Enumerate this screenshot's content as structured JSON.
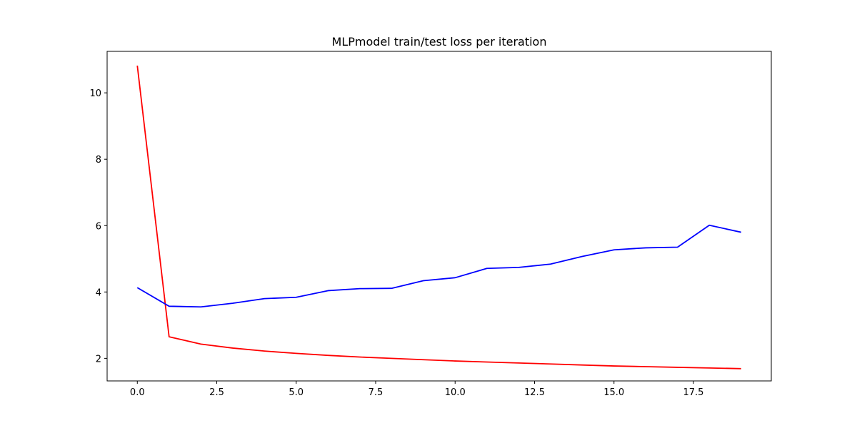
{
  "chart_data": {
    "type": "line",
    "title": "MLPmodel train/test loss per iteration",
    "xlabel": "",
    "ylabel": "",
    "xlim": [
      -0.95,
      19.95
    ],
    "ylim": [
      1.32,
      11.25
    ],
    "xticks": [
      0,
      2.5,
      5,
      7.5,
      10,
      12.5,
      15,
      17.5
    ],
    "xtick_labels": [
      "0.0",
      "2.5",
      "5.0",
      "7.5",
      "10.0",
      "12.5",
      "15.0",
      "17.5"
    ],
    "yticks": [
      2,
      4,
      6,
      8,
      10
    ],
    "ytick_labels": [
      "2",
      "4",
      "6",
      "8",
      "10"
    ],
    "grid": false,
    "legend": false,
    "x": [
      0,
      1,
      2,
      3,
      4,
      5,
      6,
      7,
      8,
      9,
      10,
      11,
      12,
      13,
      14,
      15,
      16,
      17,
      18,
      19
    ],
    "series": [
      {
        "color": "#ff0000",
        "values": [
          10.82,
          2.65,
          2.43,
          2.31,
          2.22,
          2.15,
          2.09,
          2.04,
          2.0,
          1.96,
          1.92,
          1.89,
          1.86,
          1.83,
          1.8,
          1.77,
          1.75,
          1.73,
          1.71,
          1.69
        ]
      },
      {
        "color": "#0000ff",
        "values": [
          4.13,
          3.57,
          3.55,
          3.66,
          3.8,
          3.84,
          4.04,
          4.1,
          4.11,
          4.34,
          4.43,
          4.71,
          4.74,
          4.84,
          5.07,
          5.27,
          5.33,
          5.35,
          6.01,
          5.8
        ]
      }
    ]
  }
}
